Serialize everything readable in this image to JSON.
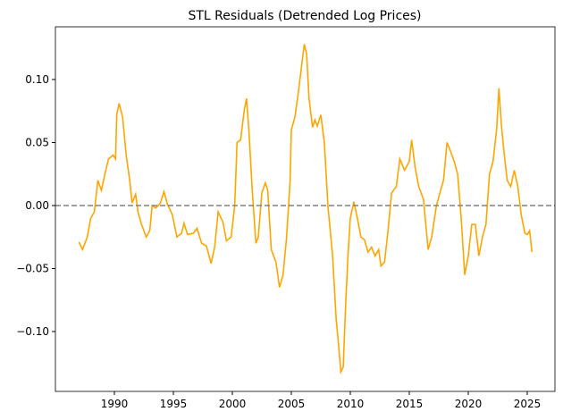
{
  "chart_data": {
    "type": "line",
    "title": "STL Residuals (Detrended Log Prices)",
    "x": [
      1987.0,
      1987.3,
      1987.7,
      1988.0,
      1988.3,
      1988.6,
      1988.9,
      1989.2,
      1989.5,
      1989.9,
      1990.1,
      1990.2,
      1990.4,
      1990.7,
      1991.0,
      1991.3,
      1991.5,
      1991.8,
      1992.0,
      1992.3,
      1992.7,
      1993.0,
      1993.2,
      1993.5,
      1993.9,
      1994.2,
      1994.5,
      1994.9,
      1995.3,
      1995.7,
      1995.9,
      1996.2,
      1996.7,
      1997.0,
      1997.4,
      1997.8,
      1998.2,
      1998.5,
      1998.8,
      1999.2,
      1999.5,
      1999.9,
      2000.2,
      2000.4,
      2000.7,
      2001.0,
      2001.2,
      2001.4,
      2001.7,
      2002.0,
      2002.2,
      2002.5,
      2002.8,
      2003.0,
      2003.3,
      2003.7,
      2004.0,
      2004.3,
      2004.6,
      2004.9,
      2005.0,
      2005.3,
      2005.6,
      2005.9,
      2006.1,
      2006.3,
      2006.5,
      2006.8,
      2007.0,
      2007.2,
      2007.5,
      2007.8,
      2008.1,
      2008.5,
      2008.8,
      2009.0,
      2009.2,
      2009.4,
      2009.6,
      2009.8,
      2010.0,
      2010.3,
      2010.6,
      2010.9,
      2011.2,
      2011.5,
      2011.8,
      2012.1,
      2012.4,
      2012.6,
      2012.9,
      2013.2,
      2013.5,
      2013.9,
      2014.2,
      2014.6,
      2015.0,
      2015.2,
      2015.5,
      2015.8,
      2016.2,
      2016.6,
      2016.9,
      2017.3,
      2017.6,
      2017.9,
      2018.2,
      2018.5,
      2018.8,
      2019.1,
      2019.4,
      2019.7,
      2020.0,
      2020.3,
      2020.6,
      2020.9,
      2021.2,
      2021.5,
      2021.8,
      2022.1,
      2022.4,
      2022.6,
      2022.8,
      2023.0,
      2023.3,
      2023.6,
      2023.9,
      2024.2,
      2024.5,
      2024.8,
      2025.0,
      2025.2,
      2025.4
    ],
    "series": [
      {
        "color": "#ffa500",
        "values": [
          -0.029,
          -0.035,
          -0.025,
          -0.01,
          -0.005,
          0.02,
          0.012,
          0.025,
          0.037,
          0.04,
          0.037,
          0.072,
          0.081,
          0.07,
          0.04,
          0.02,
          0.002,
          0.009,
          -0.005,
          -0.015,
          -0.025,
          -0.02,
          0.0,
          -0.002,
          0.002,
          0.011,
          0.001,
          -0.007,
          -0.025,
          -0.022,
          -0.014,
          -0.023,
          -0.022,
          -0.018,
          -0.03,
          -0.032,
          -0.046,
          -0.033,
          -0.005,
          -0.013,
          -0.028,
          -0.025,
          0.0,
          0.05,
          0.052,
          0.075,
          0.085,
          0.06,
          0.01,
          -0.03,
          -0.025,
          0.01,
          0.018,
          0.012,
          -0.035,
          -0.045,
          -0.065,
          -0.055,
          -0.025,
          0.02,
          0.06,
          0.07,
          0.09,
          0.113,
          0.128,
          0.12,
          0.085,
          0.062,
          0.068,
          0.063,
          0.072,
          0.05,
          0.0,
          -0.04,
          -0.09,
          -0.11,
          -0.132,
          -0.128,
          -0.08,
          -0.04,
          -0.01,
          0.003,
          -0.01,
          -0.025,
          -0.027,
          -0.037,
          -0.033,
          -0.04,
          -0.035,
          -0.048,
          -0.045,
          -0.02,
          0.01,
          0.015,
          0.037,
          0.028,
          0.035,
          0.052,
          0.03,
          0.015,
          0.005,
          -0.035,
          -0.025,
          0.0,
          0.01,
          0.02,
          0.05,
          0.043,
          0.035,
          0.025,
          -0.01,
          -0.055,
          -0.04,
          -0.015,
          -0.015,
          -0.04,
          -0.025,
          -0.015,
          0.025,
          0.035,
          0.06,
          0.093,
          0.065,
          0.045,
          0.02,
          0.015,
          0.028,
          0.015,
          -0.008,
          -0.022,
          -0.023,
          -0.02,
          -0.037
        ]
      }
    ],
    "hline": 0,
    "hline_color": "#808080",
    "xlim": [
      1985,
      2027.35
    ],
    "xticks": [
      1990,
      1995,
      2000,
      2005,
      2010,
      2015,
      2020,
      2025
    ],
    "ylim": [
      -0.1475,
      0.1418
    ],
    "yticks": [
      {
        "value": -0.1,
        "label": "−0.10"
      },
      {
        "value": -0.05,
        "label": "−0.05"
      },
      {
        "value": 0,
        "label": "0.00"
      },
      {
        "value": 0.05,
        "label": "0.05"
      },
      {
        "value": 0.1,
        "label": "0.10"
      }
    ]
  }
}
